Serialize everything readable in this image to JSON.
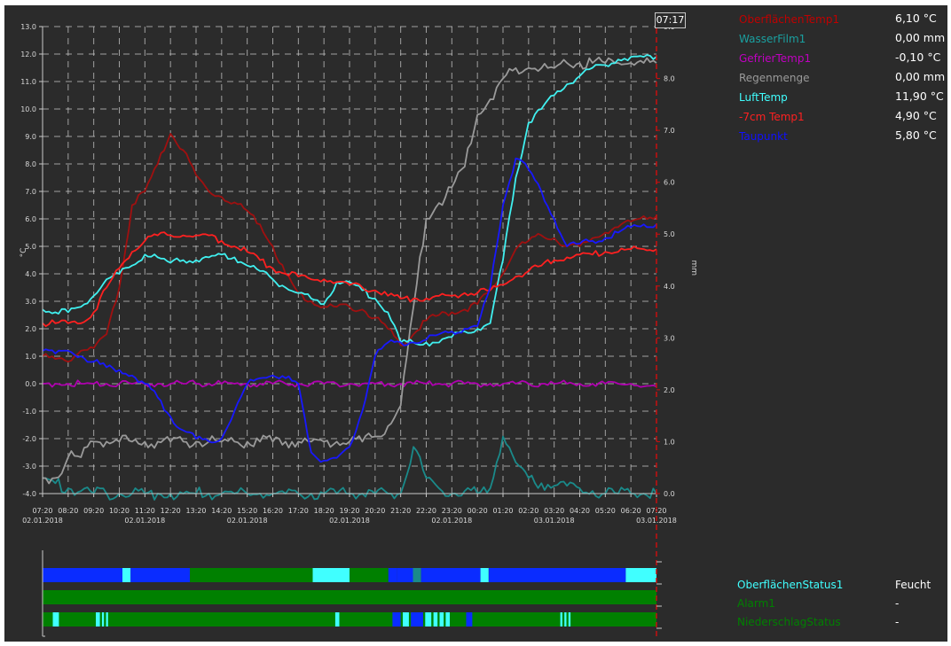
{
  "clock": "07:17",
  "legend": [
    {
      "name": "OberflächenTemp1",
      "value": "6,10 °C",
      "color": "#c00000"
    },
    {
      "name": "WasserFilm1",
      "value": "0,00 mm",
      "color": "#1aa0a0"
    },
    {
      "name": "GefrierTemp1",
      "value": "-0,10 °C",
      "color": "#c000c0"
    },
    {
      "name": "Regenmenge",
      "value": "0,00 mm",
      "color": "#9a9a9a"
    },
    {
      "name": "LuftTemp",
      "value": "11,90 °C",
      "color": "#40ffff"
    },
    {
      "name": "-7cm Temp1",
      "value": "4,90 °C",
      "color": "#ff2020"
    },
    {
      "name": "Taupunkt",
      "value": "5,80 °C",
      "color": "#1010ff"
    }
  ],
  "status_legend": [
    {
      "name": "OberflächenStatus1",
      "value": "Feucht",
      "color": "#40ffff"
    },
    {
      "name": "Alarm1",
      "value": "-",
      "color": "#008000"
    },
    {
      "name": "NiederschlagStatus",
      "value": "-",
      "color": "#008000"
    }
  ],
  "chart_data": {
    "type": "line",
    "xlabel": "",
    "ylabel_left": "°C",
    "ylabel_right": "mm",
    "ylim_left": [
      -4.0,
      13.0
    ],
    "ylim_right": [
      0.0,
      9.0
    ],
    "grid": true,
    "legend_placement": "right",
    "y_ticks_left": [
      "13.0",
      "12.0",
      "11.0",
      "10.0",
      "9.0",
      "8.0",
      "7.0",
      "6.0",
      "5.0",
      "4.0",
      "3.0",
      "2.0",
      "1.0",
      "0.0",
      "-1.0",
      "-2.0",
      "-3.0",
      "-4.0"
    ],
    "y_ticks_right": [
      "9.0",
      "8.0",
      "7.0",
      "6.0",
      "5.0",
      "4.0",
      "3.0",
      "2.0",
      "1.0",
      "0.0"
    ],
    "x_ticks": [
      "07:20",
      "08:20",
      "09:20",
      "10:20",
      "11:20",
      "12:20",
      "13:20",
      "14:20",
      "15:20",
      "16:20",
      "17:20",
      "18:20",
      "19:20",
      "20:20",
      "21:20",
      "22:20",
      "23:20",
      "00:20",
      "01:20",
      "02:20",
      "03:20",
      "04:20",
      "05:20",
      "06:20",
      "07:20"
    ],
    "x_date_labels": [
      {
        "tick": 0,
        "text": "02.01.2018"
      },
      {
        "tick": 4,
        "text": "02.01.2018"
      },
      {
        "tick": 8,
        "text": "02.01.2018"
      },
      {
        "tick": 12,
        "text": "02.01.2018"
      },
      {
        "tick": 16,
        "text": "02.01.2018"
      },
      {
        "tick": 20,
        "text": "03.01.2018"
      },
      {
        "tick": 24,
        "text": "03.01.2018"
      }
    ],
    "x": [
      0,
      0.5,
      1,
      1.5,
      2,
      2.5,
      3,
      3.5,
      4,
      4.5,
      5,
      5.5,
      6,
      6.5,
      7,
      7.5,
      8,
      8.5,
      9,
      9.5,
      10,
      10.5,
      11,
      11.5,
      12,
      12.5,
      13,
      13.5,
      14,
      14.5,
      15,
      15.5,
      16,
      16.5,
      17,
      17.5,
      18,
      18.5,
      19,
      19.5,
      20,
      20.5,
      21,
      21.5,
      22,
      22.5,
      23,
      23.5,
      24
    ],
    "series": [
      {
        "name": "OberflächenTemp1",
        "axis": "left",
        "color": "#a01010",
        "values": [
          1.0,
          0.9,
          0.8,
          1.2,
          1.3,
          1.8,
          3.5,
          6.5,
          7.0,
          8.0,
          9.1,
          8.5,
          7.6,
          7.0,
          6.8,
          6.6,
          6.3,
          5.8,
          5.0,
          4.0,
          3.3,
          3.0,
          2.8,
          2.8,
          2.8,
          2.7,
          2.4,
          2.0,
          1.4,
          1.8,
          2.3,
          2.5,
          2.6,
          2.7,
          2.9,
          3.4,
          4.0,
          4.9,
          5.2,
          5.4,
          5.3,
          5.0,
          5.0,
          5.3,
          5.5,
          5.7,
          5.9,
          6.1,
          6.1
        ]
      },
      {
        "name": "WasserFilm1",
        "axis": "right",
        "color": "#1a8a8a",
        "values": [
          0.3,
          0.2,
          0.1,
          0.05,
          0.0,
          0.0,
          0.0,
          0.0,
          0.0,
          0.0,
          0.0,
          0.0,
          0.0,
          0.0,
          0.0,
          0.0,
          0.0,
          0.0,
          0.0,
          0.0,
          0.0,
          0.0,
          0.0,
          0.0,
          0.0,
          0.0,
          0.0,
          0.0,
          0.0,
          0.9,
          0.3,
          0.1,
          0.0,
          0.05,
          0.0,
          0.1,
          1.1,
          0.6,
          0.3,
          0.2,
          0.15,
          0.15,
          0.1,
          0.05,
          0.0,
          0.0,
          0.0,
          0.0,
          0.0
        ]
      },
      {
        "name": "GefrierTemp1",
        "axis": "left",
        "color": "#b000b0",
        "values": [
          0.0,
          0.0,
          0.0,
          0.0,
          0.0,
          0.0,
          0.0,
          0.0,
          0.0,
          0.0,
          0.0,
          0.0,
          0.0,
          0.0,
          0.0,
          0.0,
          0.0,
          0.0,
          0.0,
          0.0,
          0.0,
          0.0,
          0.0,
          0.0,
          0.0,
          0.0,
          0.0,
          0.0,
          0.0,
          0.0,
          0.0,
          0.0,
          0.0,
          0.0,
          0.0,
          0.0,
          0.0,
          0.0,
          0.0,
          0.0,
          0.0,
          0.0,
          0.0,
          0.0,
          0.0,
          0.0,
          0.0,
          -0.1,
          -0.1
        ]
      },
      {
        "name": "Regenmenge",
        "axis": "right",
        "color": "#9a9a9a",
        "values": [
          0.3,
          0.3,
          0.7,
          0.7,
          1.0,
          1.0,
          1.0,
          1.0,
          1.0,
          1.0,
          1.0,
          1.0,
          1.0,
          1.0,
          1.0,
          1.0,
          1.0,
          1.0,
          1.0,
          1.0,
          1.0,
          1.0,
          1.0,
          1.0,
          1.0,
          1.0,
          1.1,
          1.3,
          1.7,
          3.6,
          5.3,
          5.6,
          5.9,
          6.3,
          7.3,
          7.6,
          8.0,
          8.2,
          8.2,
          8.2,
          8.2,
          8.3,
          8.3,
          8.3,
          8.3,
          8.3,
          8.3,
          8.3,
          8.3
        ]
      },
      {
        "name": "LuftTemp",
        "axis": "left",
        "color": "#40f0f0",
        "values": [
          2.7,
          2.6,
          2.6,
          2.8,
          3.2,
          3.8,
          4.0,
          4.3,
          4.7,
          4.6,
          4.4,
          4.5,
          4.5,
          4.6,
          4.7,
          4.6,
          4.3,
          4.1,
          3.8,
          3.5,
          3.3,
          3.1,
          2.9,
          3.7,
          3.7,
          3.4,
          3.1,
          2.6,
          1.5,
          1.5,
          1.5,
          1.5,
          1.7,
          1.9,
          2.0,
          2.2,
          4.5,
          7.5,
          9.5,
          10.0,
          10.5,
          10.9,
          11.2,
          11.5,
          11.6,
          11.8,
          11.9,
          11.9,
          11.9
        ]
      },
      {
        "name": "-7cm Temp1",
        "axis": "left",
        "color": "#ff2020",
        "values": [
          2.2,
          2.2,
          2.2,
          2.2,
          2.6,
          3.5,
          4.2,
          4.8,
          5.2,
          5.4,
          5.4,
          5.4,
          5.4,
          5.4,
          5.2,
          5.0,
          4.8,
          4.5,
          4.2,
          4.0,
          3.9,
          3.8,
          3.8,
          3.7,
          3.6,
          3.5,
          3.4,
          3.2,
          3.1,
          3.1,
          3.1,
          3.2,
          3.2,
          3.3,
          3.3,
          3.4,
          3.6,
          3.9,
          4.1,
          4.3,
          4.5,
          4.6,
          4.7,
          4.7,
          4.8,
          4.8,
          4.9,
          4.9,
          4.9
        ]
      },
      {
        "name": "Taupunkt",
        "axis": "left",
        "color": "#1818ff",
        "values": [
          1.2,
          1.1,
          1.2,
          1.0,
          0.8,
          0.6,
          0.5,
          0.3,
          0.0,
          -0.5,
          -1.2,
          -1.7,
          -2.0,
          -2.1,
          -2.0,
          -1.0,
          0.0,
          0.2,
          0.3,
          0.2,
          0.0,
          -2.5,
          -2.8,
          -2.7,
          -2.3,
          -1.0,
          1.0,
          1.5,
          1.5,
          1.5,
          1.6,
          1.8,
          1.9,
          2.0,
          2.1,
          3.5,
          6.5,
          8.2,
          7.8,
          7.0,
          6.0,
          5.0,
          5.1,
          5.2,
          5.3,
          5.5,
          5.7,
          5.8,
          5.8
        ]
      }
    ]
  },
  "status_bars": [
    {
      "name": "OberflächenStatus1",
      "segments": [
        [
          0,
          3.9,
          "#0a2cff"
        ],
        [
          3.9,
          4.3,
          "#40ffff"
        ],
        [
          4.3,
          7.2,
          "#0a2cff"
        ],
        [
          7.2,
          13.2,
          "#008000"
        ],
        [
          13.2,
          15.0,
          "#40ffff"
        ],
        [
          15.0,
          16.9,
          "#008000"
        ],
        [
          16.9,
          17.3,
          "#0a2cff"
        ],
        [
          17.3,
          18.1,
          "#0a2cff"
        ],
        [
          18.1,
          18.5,
          "#1a8a8a"
        ],
        [
          18.5,
          21.4,
          "#0a2cff"
        ],
        [
          21.4,
          21.8,
          "#40ffff"
        ],
        [
          21.8,
          28.5,
          "#0a2cff"
        ],
        [
          28.5,
          30.0,
          "#40ffff"
        ]
      ]
    },
    {
      "name": "Alarm1",
      "segments": [
        [
          0,
          30,
          "#008000"
        ]
      ]
    },
    {
      "name": "NiederschlagStatus",
      "segments": [
        [
          0,
          30,
          "#008000"
        ],
        [
          0.5,
          0.8,
          "#40ffff"
        ],
        [
          2.6,
          2.8,
          "#40ffff"
        ],
        [
          2.9,
          3.0,
          "#40ffff"
        ],
        [
          3.1,
          3.2,
          "#40ffff"
        ],
        [
          14.3,
          14.5,
          "#40ffff"
        ],
        [
          17.1,
          17.5,
          "#0a2cff"
        ],
        [
          17.6,
          17.9,
          "#40ffff"
        ],
        [
          18.0,
          18.6,
          "#0a2cff"
        ],
        [
          18.7,
          19.0,
          "#40ffff"
        ],
        [
          19.1,
          19.3,
          "#40ffff"
        ],
        [
          19.4,
          19.6,
          "#40ffff"
        ],
        [
          19.7,
          19.9,
          "#40ffff"
        ],
        [
          20.7,
          21.0,
          "#0a2cff"
        ],
        [
          25.3,
          25.4,
          "#40ffff"
        ],
        [
          25.5,
          25.6,
          "#40ffff"
        ],
        [
          25.7,
          25.8,
          "#40ffff"
        ]
      ]
    }
  ],
  "colors": {
    "background": "#2b2b2b",
    "grid": "#c8c8c8",
    "axis": "#c8c8c8",
    "now_line": "#c81010",
    "text": "#d8d8d8"
  }
}
